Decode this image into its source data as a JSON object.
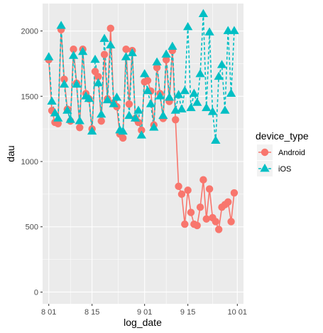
{
  "chart_data": {
    "type": "line",
    "xlabel": "log_date",
    "ylabel": "dau",
    "x_ticks": [
      {
        "date": "2020-08-01",
        "label": "8 01"
      },
      {
        "date": "2020-08-15",
        "label": "8 15"
      },
      {
        "date": "2020-09-01",
        "label": "9 01"
      },
      {
        "date": "2020-09-15",
        "label": "9 15"
      },
      {
        "date": "2020-10-01",
        "label": "10 01"
      }
    ],
    "xlim": [
      "2020-07-30",
      "2020-10-03"
    ],
    "ylim": [
      -90,
      2210
    ],
    "y_ticks": [
      0,
      500,
      1000,
      1500,
      2000
    ],
    "grid": true,
    "legend": {
      "title": "device_type",
      "position": "right"
    },
    "dates": [
      "2020-08-01",
      "2020-08-02",
      "2020-08-03",
      "2020-08-04",
      "2020-08-05",
      "2020-08-06",
      "2020-08-07",
      "2020-08-08",
      "2020-08-09",
      "2020-08-10",
      "2020-08-11",
      "2020-08-12",
      "2020-08-13",
      "2020-08-14",
      "2020-08-15",
      "2020-08-16",
      "2020-08-17",
      "2020-08-18",
      "2020-08-19",
      "2020-08-20",
      "2020-08-21",
      "2020-08-22",
      "2020-08-23",
      "2020-08-24",
      "2020-08-25",
      "2020-08-26",
      "2020-08-27",
      "2020-08-28",
      "2020-08-29",
      "2020-08-30",
      "2020-08-31",
      "2020-09-01",
      "2020-09-02",
      "2020-09-03",
      "2020-09-04",
      "2020-09-05",
      "2020-09-06",
      "2020-09-07",
      "2020-09-08",
      "2020-09-09",
      "2020-09-10",
      "2020-09-11",
      "2020-09-12",
      "2020-09-13",
      "2020-09-14",
      "2020-09-15",
      "2020-09-16",
      "2020-09-17",
      "2020-09-18",
      "2020-09-19",
      "2020-09-20",
      "2020-09-21",
      "2020-09-22",
      "2020-09-23",
      "2020-09-24",
      "2020-09-25",
      "2020-09-26",
      "2020-09-27",
      "2020-09-28",
      "2020-09-29",
      "2020-09-30"
    ],
    "series": [
      {
        "name": "Android",
        "color": "#F8766D",
        "marker": "circle",
        "line": "solid",
        "values": [
          1780,
          1390,
          1300,
          1290,
          2010,
          1630,
          1400,
          1310,
          1860,
          1600,
          1260,
          1860,
          1520,
          1480,
          1250,
          1690,
          1650,
          1310,
          1820,
          1480,
          2020,
          1450,
          1420,
          1210,
          1180,
          1860,
          1440,
          1850,
          1330,
          1300,
          1240,
          1610,
          1620,
          1540,
          1280,
          1720,
          1520,
          1330,
          1780,
          1460,
          1850,
          1320,
          810,
          750,
          520,
          780,
          610,
          520,
          510,
          650,
          860,
          560,
          790,
          570,
          540,
          480,
          650,
          670,
          690,
          540,
          760
        ]
      },
      {
        "name": "iOS",
        "color": "#00BFC4",
        "marker": "triangle",
        "line": "dashed",
        "values": [
          1800,
          1460,
          1370,
          1330,
          2040,
          1590,
          1390,
          1320,
          1810,
          1590,
          1310,
          1840,
          1500,
          1480,
          1230,
          1780,
          1600,
          1360,
          1940,
          1470,
          1890,
          1440,
          1490,
          1240,
          1230,
          1800,
          1350,
          1830,
          1330,
          1390,
          1200,
          1670,
          1540,
          1440,
          1260,
          1760,
          1500,
          1350,
          1820,
          1490,
          1880,
          1390,
          1510,
          1400,
          1540,
          2030,
          1410,
          1520,
          1450,
          1670,
          2130,
          1410,
          1990,
          1380,
          1160,
          1650,
          1740,
          1390,
          2000,
          1520,
          2000
        ]
      }
    ]
  }
}
